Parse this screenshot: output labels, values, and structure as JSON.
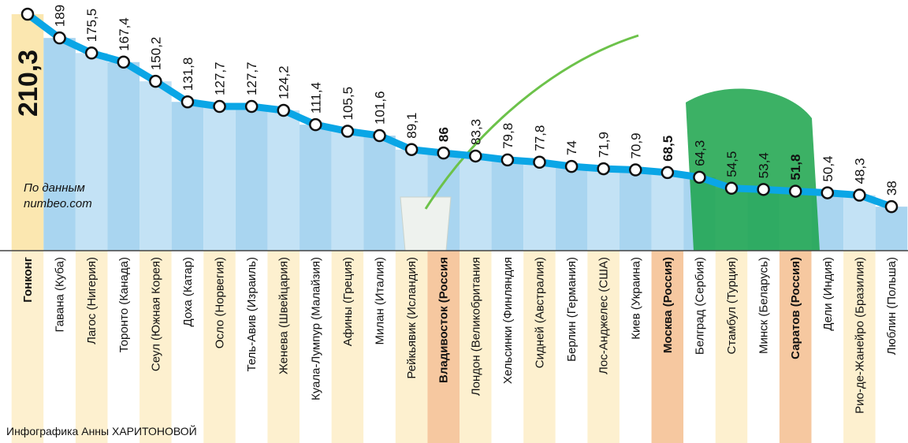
{
  "chart_data": {
    "type": "line",
    "categories": [
      "Гонконг",
      "Гавана (Куба)",
      "Лагос (Нигерия)",
      "Торонто (Канада)",
      "Сеул (Южная Корея)",
      "Доха (Катар)",
      "Осло (Норвегия)",
      "Тель-Авив (Израиль)",
      "Женева (Швейцария)",
      "Куала-Лумпур (Малайзия)",
      "Афины (Греция)",
      "Милан (Италия)",
      "Рейкьявик (Исландия)",
      "Владивосток (Россия",
      "Лондон (Великобритания",
      "Хельсинки (Финляндия",
      "Сидней (Австралия)",
      "Берлин (Германия)",
      "Лос-Анджелес (США)",
      "Киев (Украина)",
      "Москва (Россия)",
      "Белград (Сербия)",
      "Стамбул (Турция)",
      "Минск (Беларусь)",
      "Саратов (Россия)",
      "Дели (Индия)",
      "Рио-де-Жанейро (Бразилия)",
      "Люблин (Польша)"
    ],
    "values": [
      210.3,
      189,
      175.5,
      167.4,
      150.2,
      131.8,
      127.7,
      127.7,
      124.2,
      111.4,
      105.5,
      101.6,
      89.1,
      86,
      83.3,
      79.8,
      77.8,
      74,
      71.9,
      70.9,
      68.5,
      64.3,
      54.5,
      53.4,
      51.8,
      50.4,
      48.3,
      38
    ],
    "value_labels": [
      "210,3",
      "189",
      "175,5",
      "167,4",
      "150,2",
      "131,8",
      "127,7",
      "127,7",
      "124,2",
      "111,4",
      "105,5",
      "101,6",
      "89,1",
      "86",
      "83,3",
      "79,8",
      "77,8",
      "74",
      "71,9",
      "70,9",
      "68,5",
      "64,3",
      "54,5",
      "53,4",
      "51,8",
      "50,4",
      "48,3",
      "38"
    ],
    "bold": [
      0,
      13,
      20,
      24
    ],
    "color": "#0aa6e6",
    "bar_color": "#a9d5f0",
    "source": "По данным numbeo.com",
    "credit": "Инфографика Анны ХАРИТОНОВОЙ"
  }
}
